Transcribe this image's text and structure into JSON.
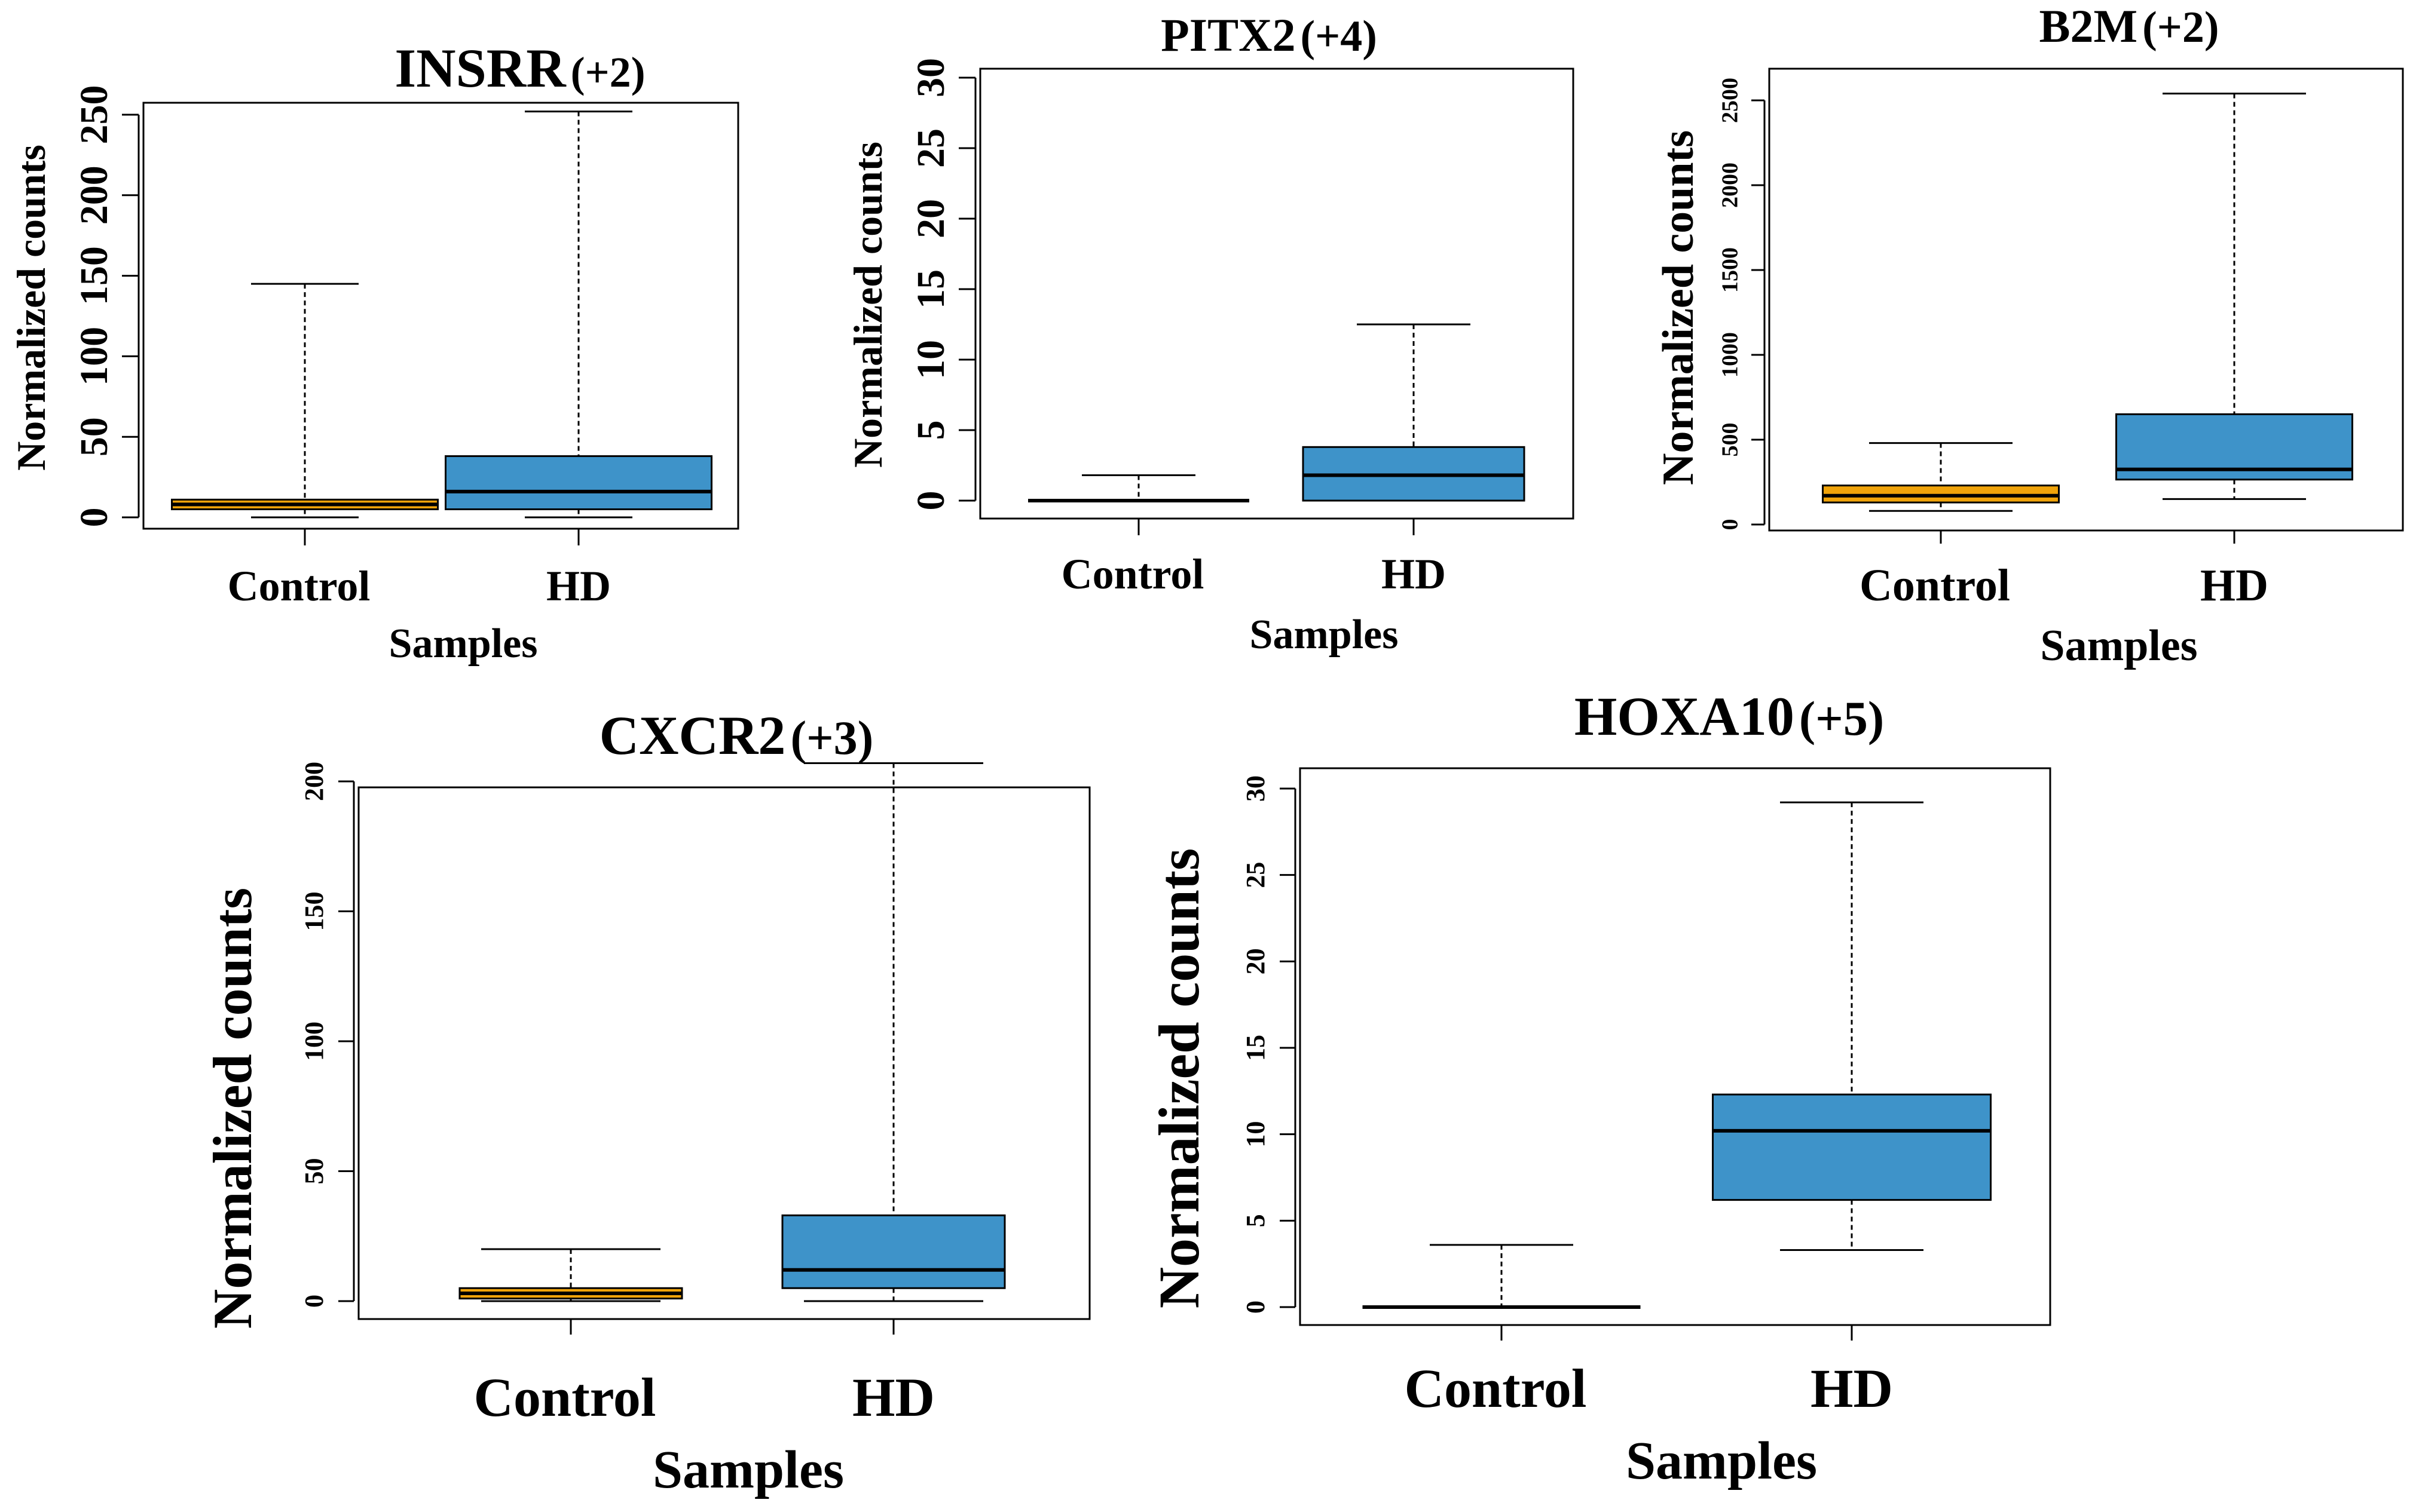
{
  "colors": {
    "control": "#F0A30A",
    "hd": "#3E93C9",
    "axis": "#000000",
    "background": "#ffffff"
  },
  "chart_data": [
    {
      "type": "box",
      "title": "INSRR",
      "title_suffix": "(+2)",
      "xlabel": "Samples",
      "ylabel": "Normalized counts",
      "categories": [
        "Control",
        "HD"
      ],
      "ylim": [
        0,
        250
      ],
      "yticks": [
        "0",
        "50",
        "100",
        "150",
        "200",
        "250"
      ],
      "boxes": [
        {
          "name": "Control",
          "min": 0,
          "q1": 5,
          "median": 8,
          "q3": 11,
          "max": 145
        },
        {
          "name": "HD",
          "min": 0,
          "q1": 5,
          "median": 16,
          "q3": 38,
          "max": 252
        }
      ]
    },
    {
      "type": "box",
      "title": "PITX2",
      "title_suffix": "(+4)",
      "xlabel": "Samples",
      "ylabel": "Normalized counts",
      "categories": [
        "Control",
        "HD"
      ],
      "ylim": [
        0,
        30
      ],
      "yticks": [
        "0",
        "5",
        "10",
        "15",
        "20",
        "25",
        "30"
      ],
      "boxes": [
        {
          "name": "Control",
          "min": 0,
          "q1": 0,
          "median": 0,
          "q3": 0,
          "max": 1.8
        },
        {
          "name": "HD",
          "min": 0,
          "q1": 0,
          "median": 1.8,
          "q3": 3.8,
          "max": 12.5
        }
      ]
    },
    {
      "type": "box",
      "title": "B2M",
      "title_suffix": "(+2)",
      "xlabel": "Samples",
      "ylabel": "Normalized counts",
      "categories": [
        "Control",
        "HD"
      ],
      "ylim": [
        0,
        2500
      ],
      "yticks": [
        "0",
        "500",
        "1000",
        "1500",
        "2000",
        "2500"
      ],
      "boxes": [
        {
          "name": "Control",
          "min": 80,
          "q1": 130,
          "median": 170,
          "q3": 230,
          "max": 480
        },
        {
          "name": "HD",
          "min": 150,
          "q1": 265,
          "median": 325,
          "q3": 650,
          "max": 2540
        }
      ]
    },
    {
      "type": "box",
      "title": "CXCR2",
      "title_suffix": "(+3)",
      "xlabel": "Samples",
      "ylabel": "Normalized counts",
      "categories": [
        "Control",
        "HD"
      ],
      "ylim": [
        0,
        200
      ],
      "yticks": [
        "0",
        "50",
        "100",
        "150",
        "200"
      ],
      "boxes": [
        {
          "name": "Control",
          "min": 0,
          "q1": 1,
          "median": 3,
          "q3": 5,
          "max": 20
        },
        {
          "name": "HD",
          "min": 0,
          "q1": 5,
          "median": 12,
          "q3": 33,
          "max": 207
        }
      ]
    },
    {
      "type": "box",
      "title": "HOXA10",
      "title_suffix": "(+5)",
      "xlabel": "Samples",
      "ylabel": "Normalized counts",
      "categories": [
        "Control",
        "HD"
      ],
      "ylim": [
        0,
        30
      ],
      "yticks": [
        "0",
        "5",
        "10",
        "15",
        "20",
        "25",
        "30"
      ],
      "boxes": [
        {
          "name": "Control",
          "min": 0,
          "q1": 0,
          "median": 0,
          "q3": 0,
          "max": 3.6
        },
        {
          "name": "HD",
          "min": 3.3,
          "q1": 6.2,
          "median": 10.2,
          "q3": 12.3,
          "max": 29.2
        }
      ]
    }
  ]
}
